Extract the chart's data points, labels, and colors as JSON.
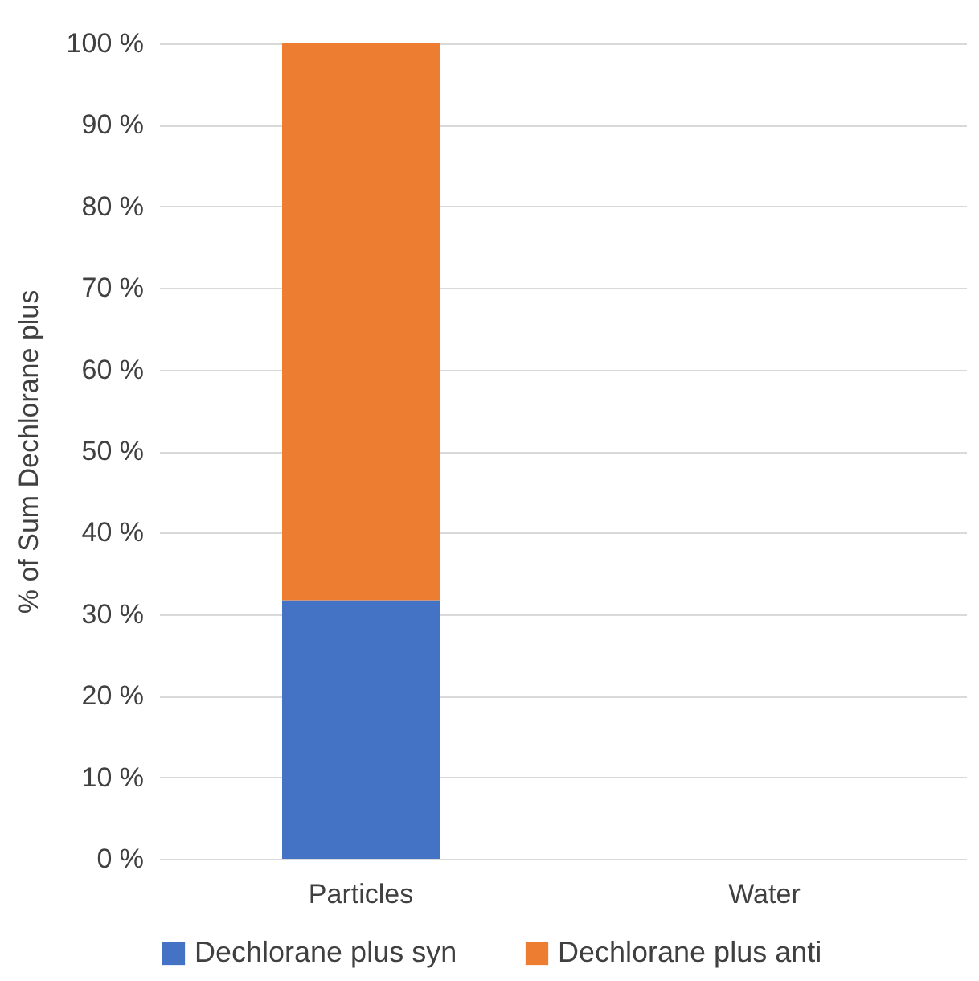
{
  "chart_data": {
    "type": "bar",
    "stacked": true,
    "ylabel": "% of Sum Dechlorane plus",
    "categories": [
      "Particles",
      "Water"
    ],
    "series": [
      {
        "name": "Dechlorane plus syn",
        "color": "#4472c4",
        "values": [
          31.7,
          null
        ]
      },
      {
        "name": "Dechlorane plus anti",
        "color": "#ed7d31",
        "values": [
          68.3,
          null
        ]
      }
    ],
    "ylim": [
      0,
      100
    ],
    "yticks": [
      {
        "value": 0,
        "label": "0 %"
      },
      {
        "value": 10,
        "label": "10 %"
      },
      {
        "value": 20,
        "label": "20 %"
      },
      {
        "value": 30,
        "label": "30 %"
      },
      {
        "value": 40,
        "label": "40 %"
      },
      {
        "value": 50,
        "label": "50 %"
      },
      {
        "value": 60,
        "label": "60 %"
      },
      {
        "value": 70,
        "label": "70 %"
      },
      {
        "value": 80,
        "label": "80 %"
      },
      {
        "value": 90,
        "label": "90 %"
      },
      {
        "value": 100,
        "label": "100 %"
      }
    ],
    "grid": "y",
    "legend": "bottom"
  }
}
